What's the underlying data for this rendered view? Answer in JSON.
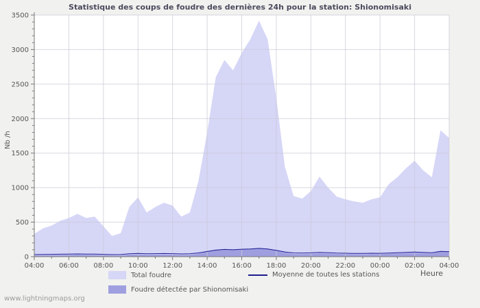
{
  "page": {
    "background": "#f1f1ef",
    "watermark": "www.lightningmaps.org"
  },
  "chart_data": {
    "type": "area",
    "title": "Statistique des coups de foudre des dernières 24h pour la station: Shionomisaki",
    "xlabel": "Heure",
    "ylabel": "Nb /h",
    "ylim": [
      0,
      3500
    ],
    "y_ticks": [
      0,
      500,
      1000,
      1500,
      2000,
      2500,
      3000,
      3500
    ],
    "x_tick_labels": [
      "04:00",
      "06:00",
      "08:00",
      "10:00",
      "12:00",
      "14:00",
      "16:00",
      "18:00",
      "20:00",
      "22:00",
      "00:00",
      "02:00",
      "04:00"
    ],
    "x_start": "04:00",
    "x_step_minutes": 30,
    "grid": true,
    "legend_position": "bottom",
    "series": [
      {
        "id": "total",
        "name": "Total foudre",
        "kind": "area",
        "color": "#d6d6f7",
        "values": [
          330,
          410,
          450,
          520,
          560,
          620,
          560,
          580,
          440,
          300,
          340,
          720,
          860,
          640,
          720,
          780,
          740,
          580,
          640,
          1100,
          1800,
          2600,
          2850,
          2700,
          2950,
          3150,
          3420,
          3150,
          2300,
          1300,
          880,
          840,
          950,
          1160,
          1000,
          870,
          830,
          800,
          780,
          830,
          860,
          1050,
          1150,
          1280,
          1390,
          1250,
          1150,
          1830,
          1720
        ]
      },
      {
        "id": "detected",
        "name": "Foudre détectée par Shionomisaki",
        "kind": "area",
        "color": "#9f9fe0",
        "values": [
          15,
          18,
          20,
          22,
          25,
          28,
          25,
          24,
          20,
          15,
          16,
          30,
          35,
          28,
          30,
          32,
          30,
          25,
          28,
          45,
          70,
          95,
          105,
          100,
          110,
          115,
          125,
          115,
          90,
          60,
          40,
          38,
          42,
          50,
          45,
          40,
          38,
          36,
          35,
          38,
          37,
          42,
          48,
          52,
          58,
          52,
          48,
          75,
          70
        ]
      },
      {
        "id": "average",
        "name": "Moyenne de toutes les stations",
        "kind": "line",
        "color": "#1b1b8f",
        "values": [
          30,
          32,
          34,
          36,
          38,
          40,
          38,
          37,
          34,
          30,
          31,
          42,
          48,
          42,
          44,
          46,
          44,
          40,
          42,
          55,
          75,
          95,
          105,
          100,
          108,
          112,
          120,
          112,
          92,
          68,
          55,
          52,
          56,
          62,
          58,
          52,
          50,
          48,
          47,
          50,
          49,
          53,
          58,
          62,
          66,
          62,
          58,
          76,
          72
        ]
      }
    ]
  }
}
